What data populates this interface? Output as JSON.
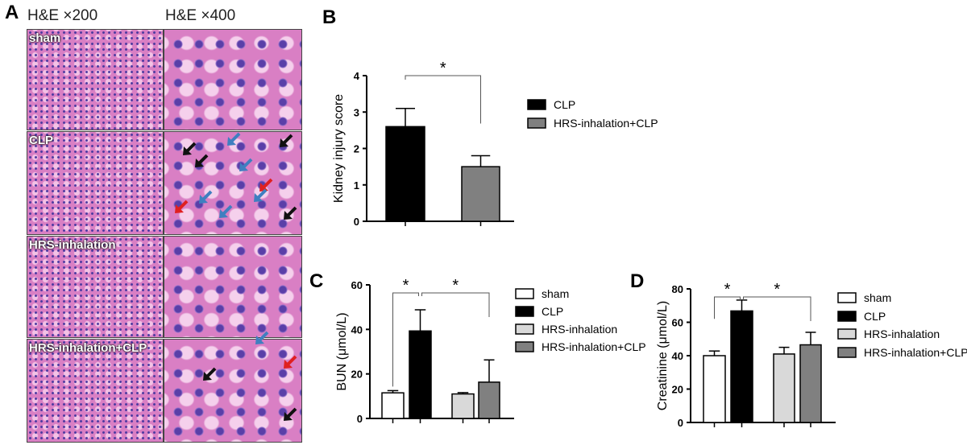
{
  "panel_a": {
    "label": "A",
    "col_titles": [
      "H&E ×200",
      "H&E ×400"
    ],
    "rows": [
      "sham",
      "CLP",
      "HRS-inhalation",
      "HRS-inhalation+CLP"
    ]
  },
  "colors": {
    "sham": "#ffffff",
    "CLP": "#000000",
    "HRS-inhalation": "#d9d9d9",
    "HRS-inhalation+CLP": "#808080",
    "arrow_black": "#111111",
    "arrow_blue": "#3f7fc0",
    "arrow_red": "#e02020"
  },
  "chart_data": [
    {
      "panel": "B",
      "type": "bar",
      "ylabel": "Kidney injury score",
      "ylim": [
        0,
        4
      ],
      "yticks": [
        "0",
        "1",
        "2",
        "3",
        "4"
      ],
      "categories": [
        "CLP",
        "HRS-inhalation+CLP"
      ],
      "values": [
        2.6,
        1.5
      ],
      "errors": [
        0.5,
        0.3
      ],
      "legend": [
        "CLP",
        "HRS-inhalation+CLP"
      ],
      "significance": [
        {
          "from": 0,
          "to": 1,
          "label": "*"
        }
      ]
    },
    {
      "panel": "C",
      "type": "bar",
      "ylabel": "BUN (μmol/L)",
      "ylim": [
        0,
        60
      ],
      "yticks": [
        "0",
        "20",
        "40",
        "60"
      ],
      "categories": [
        "sham",
        "CLP",
        "HRS-inhalation",
        "HRS-inhalation+CLP"
      ],
      "values": [
        11.5,
        39.3,
        11,
        16.3
      ],
      "errors": [
        1,
        9.5,
        0.6,
        10
      ],
      "legend": [
        "sham",
        "CLP",
        "HRS-inhalation",
        "HRS-inhalation+CLP"
      ],
      "significance": [
        {
          "from": 0,
          "to": 1,
          "label": "*"
        },
        {
          "from": 1,
          "to": 3,
          "label": "*"
        }
      ]
    },
    {
      "panel": "D",
      "type": "bar",
      "ylabel": "Creatinine (μmol/L)",
      "ylim": [
        0,
        80
      ],
      "yticks": [
        "0",
        "20",
        "40",
        "60",
        "80"
      ],
      "categories": [
        "sham",
        "CLP",
        "HRS-inhalation",
        "HRS-inhalation+CLP"
      ],
      "values": [
        40,
        66.8,
        41,
        46.5
      ],
      "errors": [
        2.8,
        6.5,
        4,
        7.5
      ],
      "legend": [
        "sham",
        "CLP",
        "HRS-inhalation",
        "HRS-inhalation+CLP"
      ],
      "significance": [
        {
          "from": 0,
          "to": 1,
          "label": "*"
        },
        {
          "from": 1,
          "to": 3,
          "label": "*"
        }
      ]
    }
  ]
}
